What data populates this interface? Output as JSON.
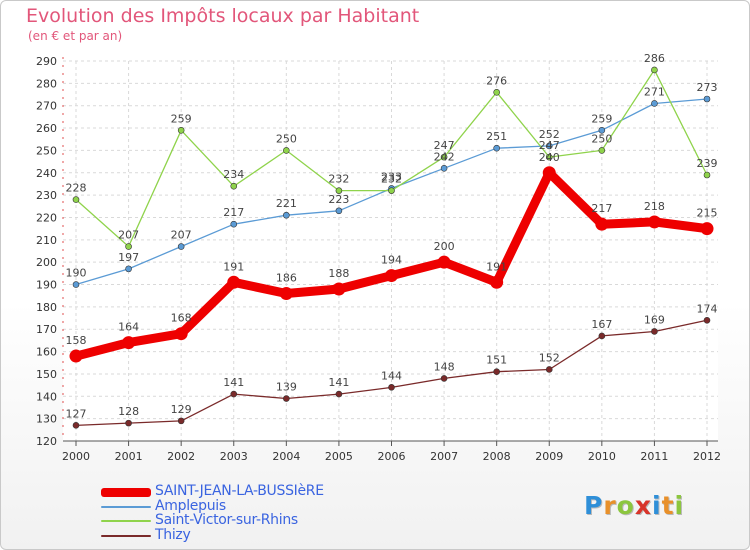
{
  "title": "Evolution des Impôts locaux par Habitant",
  "subtitle": "(en € et par an)",
  "logo": {
    "letters": [
      "P",
      "r",
      "o",
      "x",
      "i",
      "t",
      "i"
    ],
    "colors": [
      "#2f8fd8",
      "#e8902a",
      "#8cc63e",
      "#d8342a",
      "#2f8fd8",
      "#e8902a",
      "#8cc63e"
    ]
  },
  "chart_data": {
    "type": "line",
    "x": [
      "2000",
      "2001",
      "2002",
      "2003",
      "2004",
      "2005",
      "2006",
      "2007",
      "2008",
      "2009",
      "2010",
      "2011",
      "2012"
    ],
    "ylim": [
      120,
      290
    ],
    "yticks": [
      "120",
      "130",
      "140",
      "150",
      "160",
      "170",
      "180",
      "190",
      "200",
      "210",
      "220",
      "230",
      "240",
      "250",
      "260",
      "270",
      "280",
      "290"
    ],
    "grid": true,
    "legend_position": "bottom-left",
    "series": [
      {
        "name": "SAINT-JEAN-LA-BUSSIèRE",
        "color": "#ee0000",
        "emphasis": true,
        "values": [
          158,
          164,
          168,
          191,
          186,
          188,
          194,
          200,
          191,
          240,
          217,
          218,
          215
        ],
        "labels": [
          "158",
          "164",
          "168",
          "191",
          "186",
          "188",
          "194",
          "200",
          "191",
          "240",
          "217",
          "218",
          "215"
        ]
      },
      {
        "name": "Amplepuis",
        "color": "#5b9bd5",
        "emphasis": false,
        "values": [
          190,
          197,
          207,
          217,
          221,
          223,
          233,
          242,
          251,
          252,
          259,
          271,
          273
        ],
        "labels": [
          "190",
          "197",
          "207",
          "217",
          "221",
          "223",
          "233",
          "242",
          "251",
          "252",
          "259",
          "271",
          "273"
        ]
      },
      {
        "name": "Saint-Victor-sur-Rhins",
        "color": "#8fd34b",
        "emphasis": false,
        "values": [
          228,
          207,
          259,
          234,
          250,
          232,
          232,
          247,
          276,
          247,
          250,
          286,
          239
        ],
        "labels": [
          "228",
          "207",
          "259",
          "234",
          "250",
          "232",
          "232",
          "247",
          "276",
          "247",
          "250",
          "286",
          "239"
        ]
      },
      {
        "name": "Thizy",
        "color": "#7a2a2a",
        "emphasis": false,
        "values": [
          127,
          128,
          129,
          141,
          139,
          141,
          144,
          148,
          151,
          152,
          167,
          169,
          174
        ],
        "labels": [
          "127",
          "128",
          "129",
          "141",
          "139",
          "141",
          "144",
          "148",
          "151",
          "152",
          "167",
          "169",
          "174"
        ]
      }
    ]
  }
}
